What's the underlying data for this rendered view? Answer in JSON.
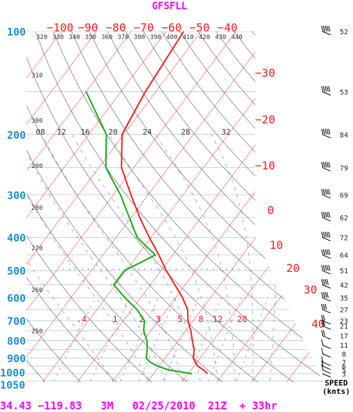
{
  "title": "GFSFLL",
  "footer": "34.43 −119.83   3M   02/25/2010  21Z  + 33hr",
  "speed_label_1": "SPEED",
  "speed_label_2": "(knts)",
  "colors": {
    "temperature": "#ff1a1a",
    "dewpoint": "#11aa11",
    "pressure_labels": "#1e90d6",
    "title": "#ff00ff",
    "isotherm": "#ff4d4d",
    "dry_adiabat": "#555555",
    "moist_adiabat": "#888888",
    "isobar": "#a9c8e8"
  },
  "chart_data": {
    "type": "line",
    "title": "GFSFLL",
    "xlabel": "",
    "ylabel": "",
    "y_scale": "log-pressure (hPa)",
    "pressure_ticks": [
      {
        "p": 100,
        "label": "100"
      },
      {
        "p": 200,
        "label": "200"
      },
      {
        "p": 300,
        "label": "300"
      },
      {
        "p": 400,
        "label": "400"
      },
      {
        "p": 500,
        "label": "500"
      },
      {
        "p": 600,
        "label": "600"
      },
      {
        "p": 700,
        "label": "700"
      },
      {
        "p": 800,
        "label": "800"
      },
      {
        "p": 900,
        "label": "900"
      },
      {
        "p": 1000,
        "label": "1000"
      },
      {
        "p": 1050,
        "label": "1050"
      }
    ],
    "isotherm_labels_top": [
      "−100",
      "−90",
      "−80",
      "−70",
      "−60",
      "−50",
      "−40"
    ],
    "isotherm_labels_right": [
      "−30",
      "−20",
      "−10",
      "0",
      "10",
      "20",
      "30",
      "40"
    ],
    "theta_labels_top": [
      "320",
      "330",
      "340",
      "350",
      "360",
      "370",
      "380",
      "390",
      "400",
      "410",
      "420",
      "430",
      "440"
    ],
    "theta_labels_left": [
      "310",
      "300",
      "290",
      "280",
      "270",
      "260",
      "250"
    ],
    "mixing_ratio_labels_upper": [
      "08",
      "12",
      "16",
      "20",
      "24",
      "28",
      "32"
    ],
    "mixing_ratio_labels_lower": [
      ".4",
      "1",
      "2",
      "3",
      "5",
      "8",
      "12",
      "20"
    ],
    "series": [
      {
        "name": "Temperature",
        "points": [
          {
            "p": 1000,
            "t": 15.5
          },
          {
            "p": 975,
            "t": 13.5
          },
          {
            "p": 950,
            "t": 11.0
          },
          {
            "p": 925,
            "t": 9.5
          },
          {
            "p": 900,
            "t": 8.0
          },
          {
            "p": 850,
            "t": 6.5
          },
          {
            "p": 800,
            "t": 4.0
          },
          {
            "p": 750,
            "t": 1.5
          },
          {
            "p": 700,
            "t": -1.5
          },
          {
            "p": 650,
            "t": -4.0
          },
          {
            "p": 600,
            "t": -8.0
          },
          {
            "p": 550,
            "t": -13.0
          },
          {
            "p": 500,
            "t": -18.5
          },
          {
            "p": 450,
            "t": -24.0
          },
          {
            "p": 400,
            "t": -30.5
          },
          {
            "p": 350,
            "t": -37.5
          },
          {
            "p": 300,
            "t": -45.0
          },
          {
            "p": 250,
            "t": -53.5
          },
          {
            "p": 200,
            "t": -60.5
          },
          {
            "p": 150,
            "t": -63.0
          },
          {
            "p": 100,
            "t": -65.0
          }
        ]
      },
      {
        "name": "Dewpoint",
        "points": [
          {
            "p": 1000,
            "t": 11.0
          },
          {
            "p": 975,
            "t": 3.5
          },
          {
            "p": 950,
            "t": -0.5
          },
          {
            "p": 925,
            "t": -3.5
          },
          {
            "p": 900,
            "t": -5.5
          },
          {
            "p": 850,
            "t": -7.0
          },
          {
            "p": 800,
            "t": -9.0
          },
          {
            "p": 750,
            "t": -12.0
          },
          {
            "p": 700,
            "t": -14.0
          },
          {
            "p": 650,
            "t": -18.5
          },
          {
            "p": 600,
            "t": -24.5
          },
          {
            "p": 550,
            "t": -30.5
          },
          {
            "p": 500,
            "t": -30.5
          },
          {
            "p": 450,
            "t": -25.0
          },
          {
            "p": 400,
            "t": -34.0
          },
          {
            "p": 350,
            "t": -40.5
          },
          {
            "p": 300,
            "t": -48.0
          },
          {
            "p": 250,
            "t": -58.0
          },
          {
            "p": 200,
            "t": -65.0
          },
          {
            "p": 150,
            "t": -80.0
          }
        ]
      }
    ],
    "wind_speeds_knots": [
      {
        "p": 100,
        "spd": 52
      },
      {
        "p": 150,
        "spd": 53
      },
      {
        "p": 200,
        "spd": 84
      },
      {
        "p": 250,
        "spd": 79
      },
      {
        "p": 300,
        "spd": 69
      },
      {
        "p": 350,
        "spd": 62
      },
      {
        "p": 400,
        "spd": 72
      },
      {
        "p": 450,
        "spd": 64
      },
      {
        "p": 500,
        "spd": 51
      },
      {
        "p": 550,
        "spd": 42
      },
      {
        "p": 600,
        "spd": 35
      },
      {
        "p": 650,
        "spd": 27
      },
      {
        "p": 700,
        "spd": 23
      },
      {
        "p": 725,
        "spd": 21
      },
      {
        "p": 775,
        "spd": 17
      },
      {
        "p": 825,
        "spd": 11
      },
      {
        "p": 875,
        "spd": 8
      },
      {
        "p": 925,
        "spd": 7
      },
      {
        "p": 950,
        "spd": 6
      },
      {
        "p": 975,
        "spd": 5
      },
      {
        "p": 1000,
        "spd": 3
      }
    ]
  }
}
